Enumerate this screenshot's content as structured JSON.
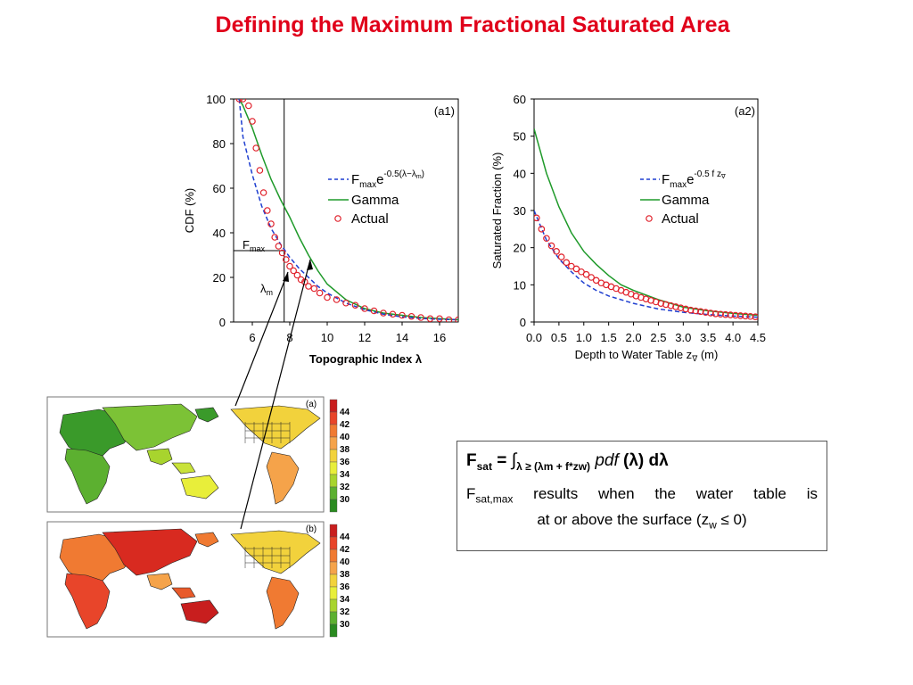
{
  "title": "Defining the Maximum Fractional Saturated Area",
  "colors": {
    "title": "#e0001a",
    "fit": "#1f3fd0",
    "gamma": "#1f9a2a",
    "actual": "#e0202a"
  },
  "chart_data": [
    {
      "type": "line",
      "panel": "(a1)",
      "xlabel": "Topographic Index λ",
      "ylabel": "CDF (%)",
      "xlim": [
        5,
        17
      ],
      "ylim": [
        0,
        100
      ],
      "xticks": [
        6,
        8,
        10,
        12,
        14,
        16
      ],
      "yticks": [
        0,
        20,
        40,
        60,
        80,
        100
      ],
      "legend_position": "right",
      "annotations": {
        "fmax_label": "F",
        "fmax_sub": "max",
        "lambda_label": "λ",
        "lambda_sub": "m",
        "fmax_value": 32,
        "lambda_m": 7.7
      },
      "legend": {
        "fit": {
          "pre": "F",
          "sub": "max",
          "e": "e",
          "sup": "-0.5(λ−λ",
          "sup_sub": "m",
          "sup_end": ")"
        },
        "gamma": "Gamma",
        "actual": "Actual"
      },
      "series": [
        {
          "name": "Gamma",
          "style": "solid-green",
          "x": [
            5.3,
            5.5,
            6,
            6.5,
            7,
            7.5,
            8,
            8.5,
            9,
            9.5,
            10,
            11,
            12,
            13,
            14,
            15,
            16,
            17
          ],
          "y": [
            100,
            97,
            87,
            75,
            64,
            55,
            47,
            38,
            30,
            23,
            17,
            10,
            6,
            4,
            3,
            2,
            1.5,
            1
          ]
        },
        {
          "name": "Fmax exp fit",
          "style": "dashed-blue",
          "x": [
            5.3,
            5.5,
            6,
            6.5,
            7,
            7.5,
            8,
            8.5,
            9,
            9.5,
            10,
            11,
            12,
            13,
            14,
            15,
            16,
            17
          ],
          "y": [
            100,
            83,
            66,
            52,
            42,
            35,
            29,
            24,
            20,
            16,
            13,
            8.5,
            5.5,
            3.5,
            2.3,
            1.6,
            1.2,
            1
          ]
        },
        {
          "name": "Actual",
          "style": "red-circles",
          "x": [
            5.3,
            5.5,
            5.8,
            6,
            6.2,
            6.4,
            6.6,
            6.8,
            7,
            7.2,
            7.4,
            7.6,
            7.8,
            8,
            8.2,
            8.4,
            8.6,
            8.8,
            9,
            9.3,
            9.6,
            10,
            10.5,
            11,
            11.5,
            12,
            12.5,
            13,
            13.5,
            14,
            14.5,
            15,
            15.5,
            16,
            16.5,
            17
          ],
          "y": [
            100,
            100,
            97,
            90,
            78,
            68,
            58,
            50,
            44,
            38,
            34,
            31,
            28,
            25,
            23,
            21,
            19,
            18,
            16,
            15,
            13,
            11,
            10,
            8.5,
            7.5,
            6,
            5,
            4,
            3.5,
            3,
            2.5,
            2,
            1.5,
            1.5,
            1,
            1
          ]
        }
      ]
    },
    {
      "type": "line",
      "panel": "(a2)",
      "xlabel": {
        "text": "Depth to Water Table z",
        "sub": "∇",
        "end": " (m)"
      },
      "ylabel": "Saturated Fraction (%)",
      "xlim": [
        0,
        4.5
      ],
      "ylim": [
        0,
        60
      ],
      "xticks": [
        0.0,
        0.5,
        1.0,
        1.5,
        2.0,
        2.5,
        3.0,
        3.5,
        4.0,
        4.5
      ],
      "yticks": [
        0,
        10,
        20,
        30,
        40,
        50,
        60
      ],
      "legend_position": "right",
      "legend": {
        "fit": {
          "pre": "F",
          "sub": "max",
          "e": "e",
          "sup": "-0.5 f z",
          "sup_sub": "∇"
        },
        "gamma": "Gamma",
        "actual": "Actual"
      },
      "series": [
        {
          "name": "Gamma",
          "style": "solid-green",
          "x": [
            0,
            0.25,
            0.5,
            0.75,
            1,
            1.25,
            1.5,
            1.75,
            2,
            2.5,
            3,
            3.5,
            4,
            4.5
          ],
          "y": [
            52,
            40,
            31,
            24,
            19,
            15.5,
            12.5,
            10,
            8.5,
            6,
            4,
            3,
            2.3,
            1.8
          ]
        },
        {
          "name": "Fmax exp fit",
          "style": "dashed-blue",
          "x": [
            0,
            0.25,
            0.5,
            0.75,
            1,
            1.25,
            1.5,
            1.75,
            2,
            2.5,
            3,
            3.5,
            4,
            4.5
          ],
          "y": [
            30,
            22,
            17,
            13.5,
            10.5,
            8.5,
            7,
            6,
            5,
            3.5,
            2.6,
            2,
            1.6,
            1.3
          ]
        },
        {
          "name": "Actual",
          "style": "red-circles",
          "x": [
            0.05,
            0.15,
            0.25,
            0.35,
            0.45,
            0.55,
            0.65,
            0.75,
            0.85,
            0.95,
            1.05,
            1.15,
            1.25,
            1.35,
            1.45,
            1.55,
            1.65,
            1.75,
            1.85,
            1.95,
            2.05,
            2.15,
            2.25,
            2.35,
            2.45,
            2.55,
            2.65,
            2.75,
            2.85,
            2.95,
            3.05,
            3.15,
            3.25,
            3.35,
            3.45,
            3.55,
            3.65,
            3.75,
            3.85,
            3.95,
            4.05,
            4.15,
            4.25,
            4.35,
            4.45
          ],
          "y": [
            28,
            25,
            22.5,
            20.5,
            19,
            17.5,
            16,
            15,
            14.3,
            13.5,
            12.8,
            12,
            11.2,
            10.5,
            10,
            9.5,
            9,
            8.5,
            8,
            7.5,
            7,
            6.6,
            6.2,
            5.8,
            5.4,
            5,
            4.7,
            4.4,
            4.1,
            3.8,
            3.5,
            3.2,
            3,
            2.8,
            2.6,
            2.4,
            2.2,
            2.1,
            2,
            1.9,
            1.8,
            1.7,
            1.6,
            1.5,
            1.4
          ]
        }
      ]
    }
  ],
  "maps": [
    {
      "label": "(a)",
      "palette": "green-yellow",
      "colorbar": [
        "44",
        "42",
        "40",
        "38",
        "36",
        "34",
        "32",
        "30"
      ]
    },
    {
      "label": "(b)",
      "palette": "orange-red",
      "colorbar": [
        "44",
        "42",
        "40",
        "38",
        "36",
        "34",
        "32",
        "30"
      ]
    }
  ],
  "colorbar_colors": [
    "#c81e1e",
    "#e8452a",
    "#f07a32",
    "#f5a34a",
    "#f2d23c",
    "#e8ee3a",
    "#a8d42e",
    "#5cb030",
    "#2a8a20"
  ],
  "formula": {
    "f": "F",
    "f_sub": "sat",
    "eq": " = ",
    "integral": "∫",
    "int_sub": "λ ≥ (λm + f*zw)",
    "pdf": "pdf",
    "rest": " (λ) dλ",
    "note_f": "F",
    "note_sub": "sat,max",
    "note_words": [
      "results",
      "when",
      "the",
      "water",
      "table",
      "is"
    ],
    "note_line2_a": "at or above the surface (z",
    "note_line2_sub": "w",
    "note_line2_b": " ≤ 0)"
  }
}
